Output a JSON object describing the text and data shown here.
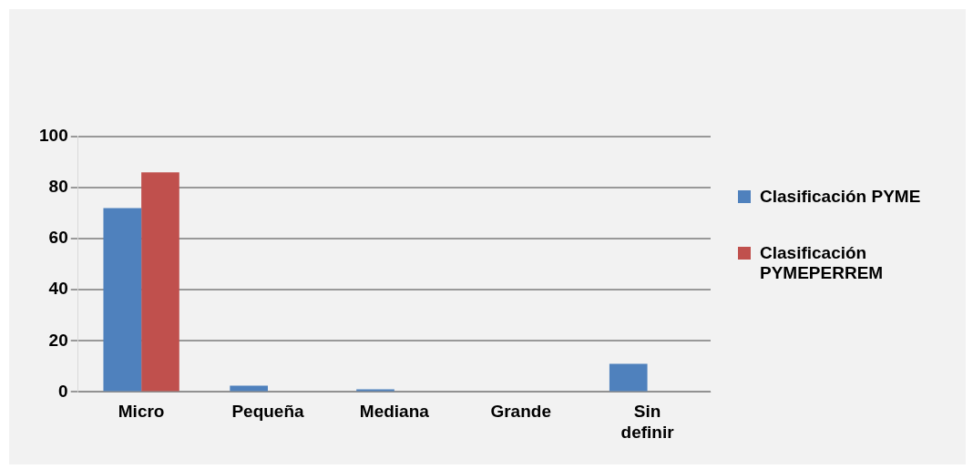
{
  "chart_data": {
    "type": "bar",
    "categories": [
      "Micro",
      "Pequeña",
      "Mediana",
      "Grande",
      "Sin definir"
    ],
    "series": [
      {
        "name": "Clasificación PYME",
        "color": "#4f81bd",
        "values": [
          72,
          2.5,
          1,
          0,
          11
        ]
      },
      {
        "name": "Clasificación PYMEPERREM",
        "color": "#c0504d",
        "values": [
          86,
          0,
          0,
          0,
          0
        ]
      }
    ],
    "ylim": [
      0,
      100
    ],
    "yticks": [
      0,
      20,
      40,
      60,
      80,
      100
    ],
    "grid": "y",
    "legend": "right"
  }
}
